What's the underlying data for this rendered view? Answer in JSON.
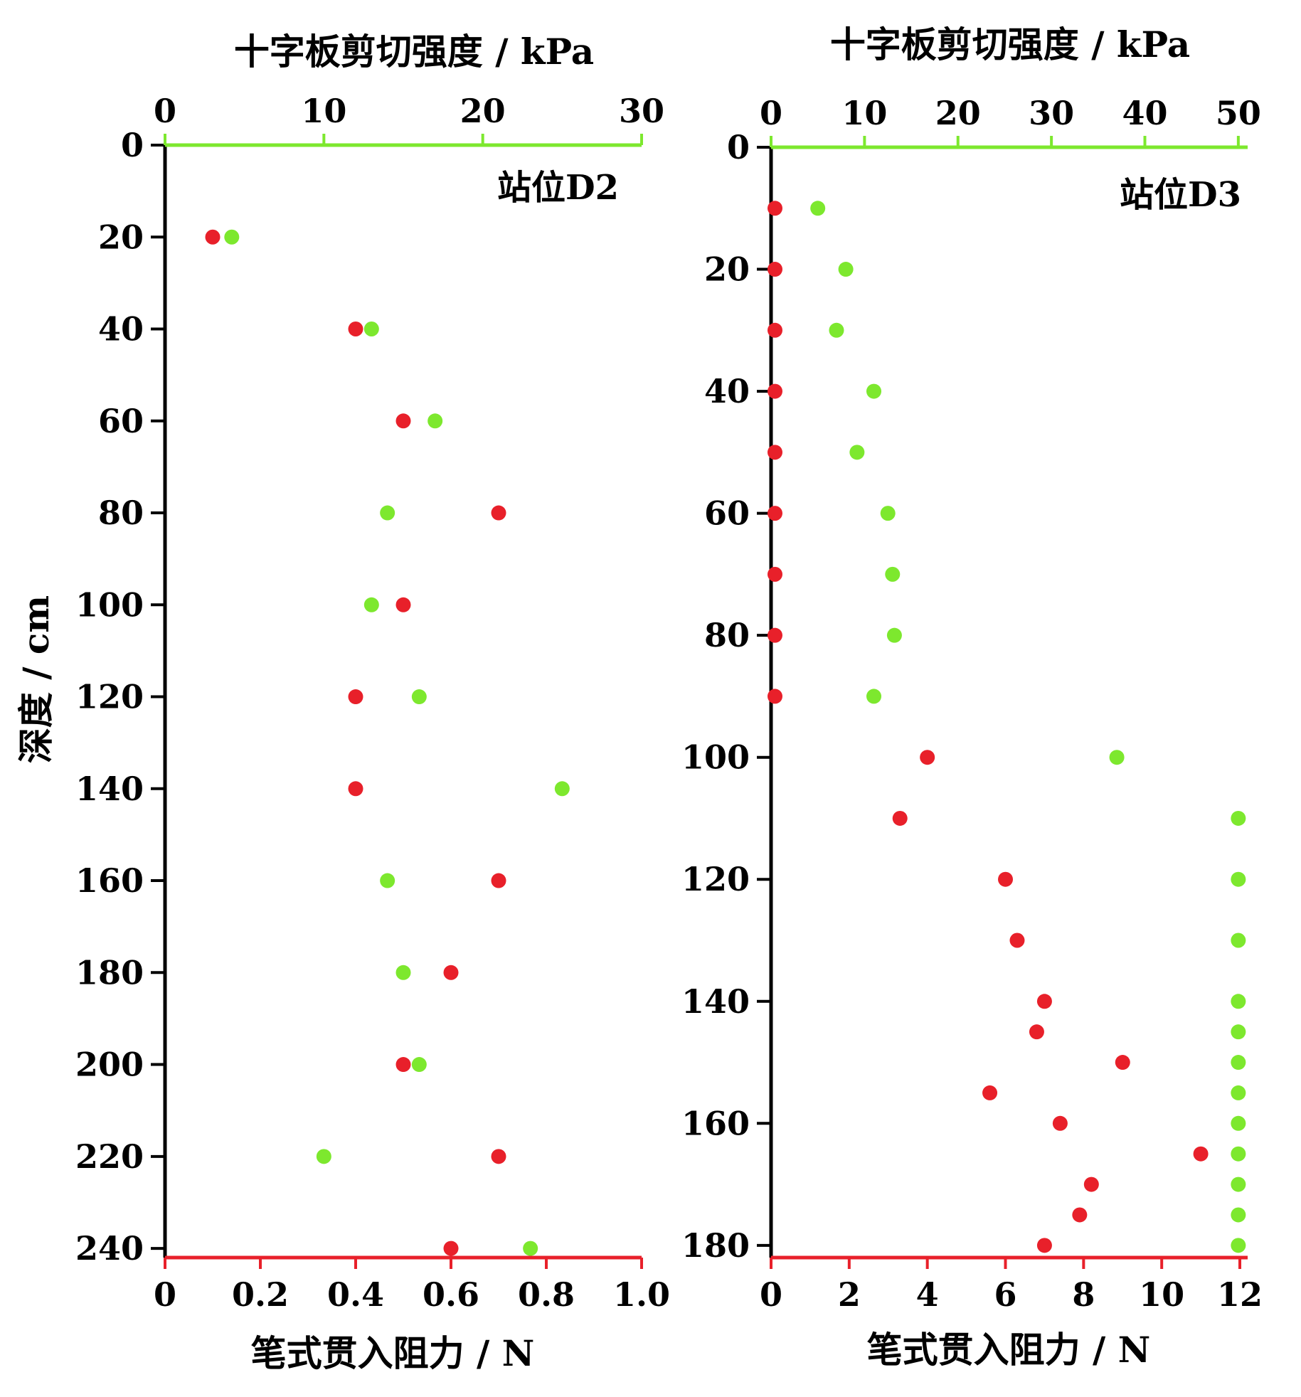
{
  "chart_data": [
    {
      "type": "scatter",
      "panel": "站位D2",
      "station_label": "站位D2",
      "top_axis_title": "十字板剪切强度 / kPa",
      "bottom_axis_title": "笔式贯入阻力 / N",
      "ylabel": "深度 / cm",
      "top_axis": {
        "range": [
          0,
          30
        ],
        "ticks": [
          0,
          10,
          20,
          30
        ],
        "tick_labels": [
          "0",
          "10",
          "20",
          "30"
        ],
        "color": "#7de82e"
      },
      "bottom_axis": {
        "range": [
          0,
          1.0
        ],
        "ticks": [
          0,
          0.2,
          0.4,
          0.6,
          0.8,
          1.0
        ],
        "tick_labels": [
          "0",
          "0.2",
          "0.4",
          "0.6",
          "0.8",
          "1.0"
        ],
        "color": "#e8202a"
      },
      "y_axis": {
        "range": [
          0,
          242
        ],
        "inverted": true,
        "ticks": [
          0,
          20,
          40,
          60,
          80,
          100,
          120,
          140,
          160,
          180,
          200,
          220,
          240
        ],
        "tick_labels": [
          "0",
          "20",
          "40",
          "60",
          "80",
          "100",
          "120",
          "140",
          "160",
          "180",
          "200",
          "220",
          "240"
        ]
      },
      "series": [
        {
          "axis": "bottom",
          "color": "#e8202a",
          "points": [
            {
              "x": 0.1,
              "y": 20
            },
            {
              "x": 0.4,
              "y": 40
            },
            {
              "x": 0.5,
              "y": 60
            },
            {
              "x": 0.7,
              "y": 80
            },
            {
              "x": 0.5,
              "y": 100
            },
            {
              "x": 0.4,
              "y": 120
            },
            {
              "x": 0.4,
              "y": 140
            },
            {
              "x": 0.7,
              "y": 160
            },
            {
              "x": 0.6,
              "y": 180
            },
            {
              "x": 0.5,
              "y": 200
            },
            {
              "x": 0.7,
              "y": 220
            },
            {
              "x": 0.6,
              "y": 240
            }
          ]
        },
        {
          "axis": "top",
          "color": "#7de82e",
          "points": [
            {
              "x": 4.2,
              "y": 20
            },
            {
              "x": 13.0,
              "y": 40
            },
            {
              "x": 17.0,
              "y": 60
            },
            {
              "x": 14.0,
              "y": 80
            },
            {
              "x": 13.0,
              "y": 100
            },
            {
              "x": 16.0,
              "y": 120
            },
            {
              "x": 25.0,
              "y": 140
            },
            {
              "x": 14.0,
              "y": 160
            },
            {
              "x": 15.0,
              "y": 180
            },
            {
              "x": 16.0,
              "y": 200
            },
            {
              "x": 10.0,
              "y": 220
            },
            {
              "x": 23.0,
              "y": 240
            }
          ]
        }
      ],
      "grid": false
    },
    {
      "type": "scatter",
      "panel": "站位D3",
      "station_label": "站位D3",
      "top_axis_title": "十字板剪切强度 / kPa",
      "bottom_axis_title": "笔式贯入阻力 / N",
      "ylabel": "",
      "top_axis": {
        "range": [
          0,
          51
        ],
        "ticks": [
          0,
          10,
          20,
          30,
          40,
          50
        ],
        "tick_labels": [
          "0",
          "10",
          "20",
          "30",
          "40",
          "50"
        ],
        "color": "#7de82e"
      },
      "bottom_axis": {
        "range": [
          0,
          12.2
        ],
        "ticks": [
          0,
          2,
          4,
          6,
          8,
          10,
          12
        ],
        "tick_labels": [
          "0",
          "2",
          "4",
          "6",
          "8",
          "10",
          "12"
        ],
        "color": "#e8202a"
      },
      "y_axis": {
        "range": [
          0,
          182
        ],
        "inverted": true,
        "ticks": [
          0,
          20,
          40,
          60,
          80,
          100,
          120,
          140,
          160,
          180
        ],
        "tick_labels": [
          "0",
          "20",
          "40",
          "60",
          "80",
          "100",
          "120",
          "140",
          "160",
          "180"
        ]
      },
      "series": [
        {
          "axis": "bottom",
          "color": "#e8202a",
          "points": [
            {
              "x": 0.1,
              "y": 10
            },
            {
              "x": 0.1,
              "y": 20
            },
            {
              "x": 0.1,
              "y": 30
            },
            {
              "x": 0.1,
              "y": 40
            },
            {
              "x": 0.1,
              "y": 50
            },
            {
              "x": 0.1,
              "y": 60
            },
            {
              "x": 0.1,
              "y": 70
            },
            {
              "x": 0.1,
              "y": 80
            },
            {
              "x": 0.1,
              "y": 90
            },
            {
              "x": 4.0,
              "y": 100
            },
            {
              "x": 3.3,
              "y": 110
            },
            {
              "x": 6.0,
              "y": 120
            },
            {
              "x": 6.3,
              "y": 130
            },
            {
              "x": 7.0,
              "y": 140
            },
            {
              "x": 6.8,
              "y": 145
            },
            {
              "x": 9.0,
              "y": 150
            },
            {
              "x": 5.6,
              "y": 155
            },
            {
              "x": 7.4,
              "y": 160
            },
            {
              "x": 11.0,
              "y": 165
            },
            {
              "x": 8.2,
              "y": 170
            },
            {
              "x": 7.9,
              "y": 175
            },
            {
              "x": 7.0,
              "y": 180
            }
          ]
        },
        {
          "axis": "top",
          "color": "#7de82e",
          "points": [
            {
              "x": 5.0,
              "y": 10
            },
            {
              "x": 8.0,
              "y": 20
            },
            {
              "x": 7.0,
              "y": 30
            },
            {
              "x": 11.0,
              "y": 40
            },
            {
              "x": 9.2,
              "y": 50
            },
            {
              "x": 12.5,
              "y": 60
            },
            {
              "x": 13.0,
              "y": 70
            },
            {
              "x": 13.2,
              "y": 80
            },
            {
              "x": 11.0,
              "y": 90
            },
            {
              "x": 37.0,
              "y": 100
            },
            {
              "x": 50.0,
              "y": 110
            },
            {
              "x": 50.0,
              "y": 120
            },
            {
              "x": 50.0,
              "y": 130
            },
            {
              "x": 50.0,
              "y": 140
            },
            {
              "x": 50.0,
              "y": 145
            },
            {
              "x": 50.0,
              "y": 150
            },
            {
              "x": 50.0,
              "y": 155
            },
            {
              "x": 50.0,
              "y": 160
            },
            {
              "x": 50.0,
              "y": 165
            },
            {
              "x": 50.0,
              "y": 170
            },
            {
              "x": 50.0,
              "y": 175
            },
            {
              "x": 50.0,
              "y": 180
            }
          ]
        }
      ],
      "grid": false
    }
  ]
}
